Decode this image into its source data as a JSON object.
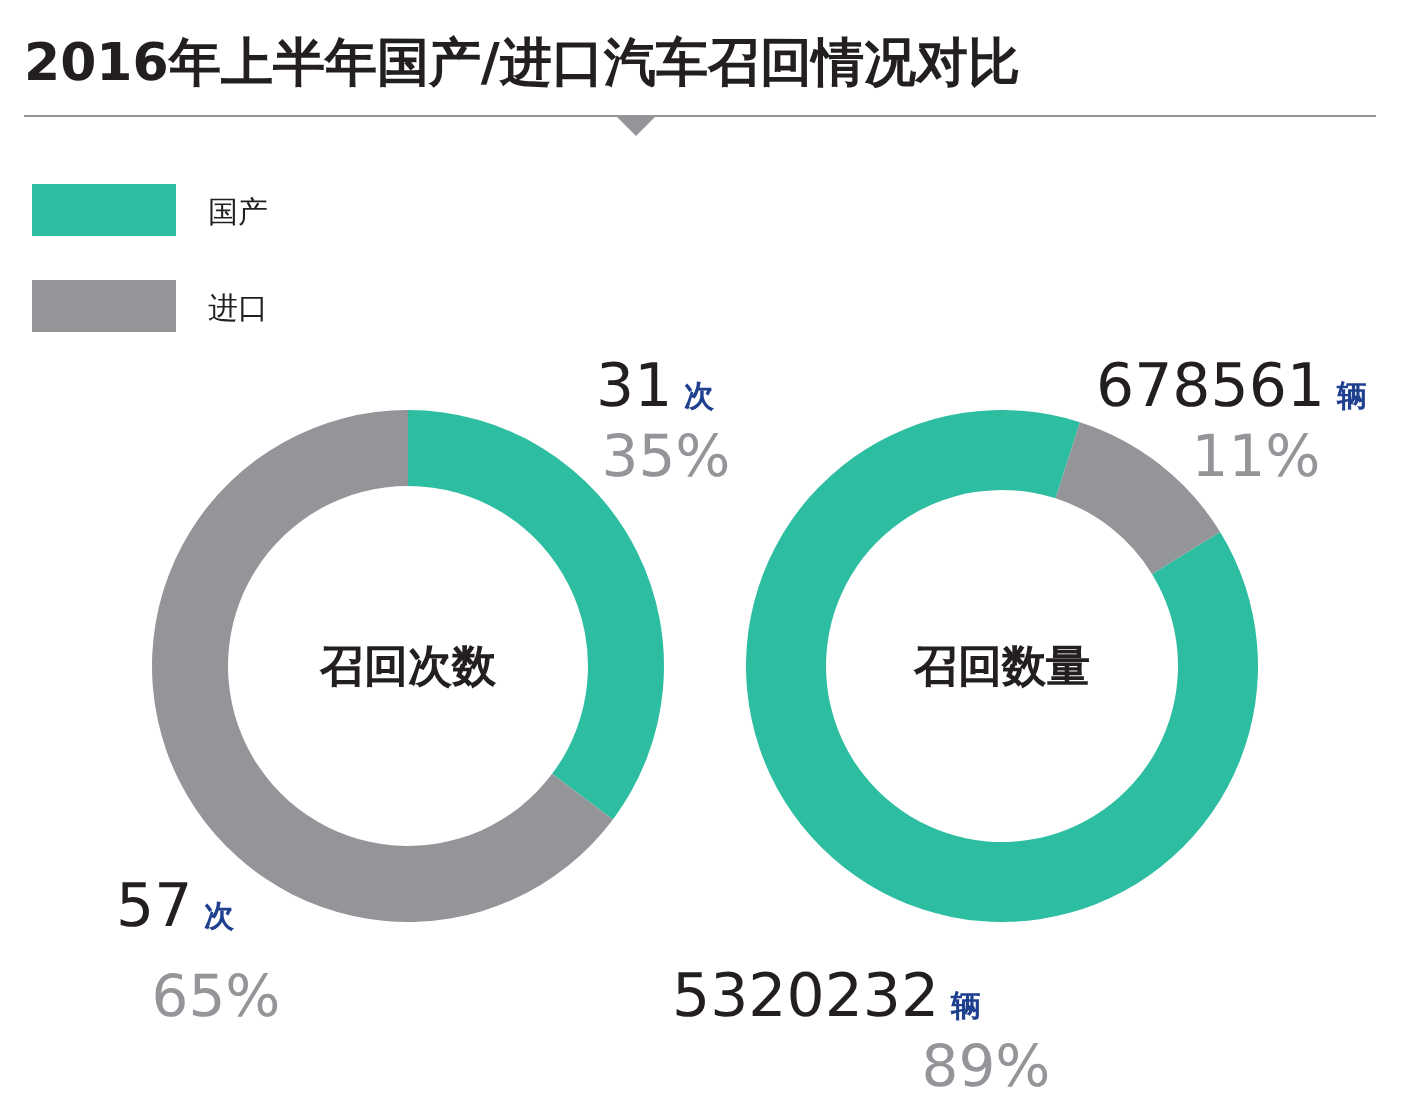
{
  "chart_data": [
    {
      "type": "donut",
      "title": "2016年上半年国产/进口汽车召回情况对比",
      "subtitle": "召回次数",
      "categories": [
        "国产",
        "进口"
      ],
      "values": [
        31,
        57
      ],
      "colors": [
        "#2dbda0",
        "#939598"
      ],
      "value_labels": [
        "31 次",
        "57 次"
      ],
      "annotations": [
        "35%",
        "65%"
      ],
      "legend": "top left"
    },
    {
      "type": "donut",
      "subtitle": "召回数量",
      "categories": [
        null,
        null
      ],
      "values": [
        5320232,
        678561
      ],
      "colors": [
        "#2dbda0",
        "#939598"
      ],
      "value_labels": [
        "5320232 辆",
        "678561 辆"
      ],
      "annotations": [
        "89%",
        "11%"
      ]
    }
  ]
}
